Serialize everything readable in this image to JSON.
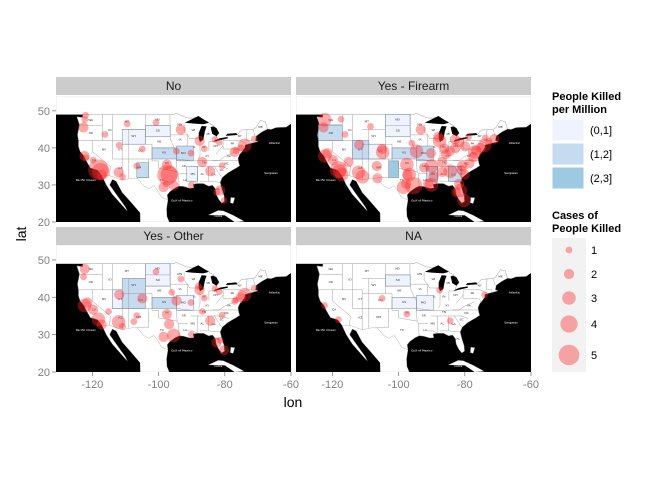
{
  "chart_data": {
    "type": "map",
    "xlabel": "lon",
    "ylabel": "lat",
    "xlim": [
      -131,
      -60
    ],
    "ylim": [
      20,
      54
    ],
    "x_ticks": [
      -120,
      -100,
      -80,
      -60
    ],
    "y_ticks": [
      20,
      30,
      40,
      50
    ],
    "colors": {
      "background": "#000000",
      "land": "#ffffff",
      "strip": "#cccccc",
      "panel_bg": "#e5e5e5",
      "legend_key_bg": "#f2f2f2",
      "point": "#ff2a2a"
    },
    "panels": [
      {
        "name": "No",
        "points": [
          {
            "lon": -118.2,
            "lat": 34.1,
            "size": 5
          },
          {
            "lon": -117.5,
            "lat": 33.6,
            "size": 4
          },
          {
            "lon": -122.4,
            "lat": 37.8,
            "size": 2
          },
          {
            "lon": -121.9,
            "lat": 37.3,
            "size": 1
          },
          {
            "lon": -119.8,
            "lat": 36.7,
            "size": 1
          },
          {
            "lon": -122.3,
            "lat": 47.6,
            "size": 1
          },
          {
            "lon": -122.7,
            "lat": 45.5,
            "size": 2
          },
          {
            "lon": -117.2,
            "lat": 32.7,
            "size": 2
          },
          {
            "lon": -112.1,
            "lat": 33.4,
            "size": 2
          },
          {
            "lon": -110.9,
            "lat": 32.2,
            "size": 1
          },
          {
            "lon": -104.9,
            "lat": 39.7,
            "size": 1
          },
          {
            "lon": -106.6,
            "lat": 35.1,
            "size": 1
          },
          {
            "lon": -111.9,
            "lat": 40.7,
            "size": 1
          },
          {
            "lon": -116.2,
            "lat": 43.6,
            "size": 1
          },
          {
            "lon": -97.5,
            "lat": 35.5,
            "size": 2
          },
          {
            "lon": -96.8,
            "lat": 32.8,
            "size": 4
          },
          {
            "lon": -97.3,
            "lat": 32.7,
            "size": 5
          },
          {
            "lon": -95.4,
            "lat": 29.8,
            "size": 2
          },
          {
            "lon": -98.5,
            "lat": 29.4,
            "size": 2
          },
          {
            "lon": -97.7,
            "lat": 30.3,
            "size": 1
          },
          {
            "lon": -94.6,
            "lat": 39.1,
            "size": 1
          },
          {
            "lon": -93.3,
            "lat": 44.9,
            "size": 2
          },
          {
            "lon": -87.6,
            "lat": 41.9,
            "size": 2
          },
          {
            "lon": -90.2,
            "lat": 38.6,
            "size": 1
          },
          {
            "lon": -86.8,
            "lat": 36.2,
            "size": 2
          },
          {
            "lon": -84.4,
            "lat": 33.7,
            "size": 2
          },
          {
            "lon": -81.7,
            "lat": 41.5,
            "size": 1
          },
          {
            "lon": -83.0,
            "lat": 42.3,
            "size": 1
          },
          {
            "lon": -80.2,
            "lat": 25.8,
            "size": 1
          },
          {
            "lon": -82.5,
            "lat": 28.0,
            "size": 1
          },
          {
            "lon": -81.4,
            "lat": 28.5,
            "size": 2
          },
          {
            "lon": -80.8,
            "lat": 35.2,
            "size": 1
          },
          {
            "lon": -77.0,
            "lat": 38.9,
            "size": 2
          },
          {
            "lon": -75.2,
            "lat": 40.0,
            "size": 1
          },
          {
            "lon": -74.0,
            "lat": 40.7,
            "size": 3
          },
          {
            "lon": -71.1,
            "lat": 42.4,
            "size": 1
          },
          {
            "lon": -76.6,
            "lat": 39.3,
            "size": 1
          },
          {
            "lon": -90.1,
            "lat": 30.0,
            "size": 1
          },
          {
            "lon": -86.2,
            "lat": 39.8,
            "size": 1
          },
          {
            "lon": -122.1,
            "lat": 48.8,
            "size": 1
          },
          {
            "lon": -109.5,
            "lat": 46.5,
            "size": 1
          },
          {
            "lon": -100.8,
            "lat": 46.8,
            "size": 1
          }
        ]
      },
      {
        "name": "Yes - Firearm",
        "points": [
          {
            "lon": -118.2,
            "lat": 34.1,
            "size": 4
          },
          {
            "lon": -117.9,
            "lat": 33.8,
            "size": 3
          },
          {
            "lon": -117.2,
            "lat": 32.8,
            "size": 3
          },
          {
            "lon": -122.3,
            "lat": 37.8,
            "size": 3
          },
          {
            "lon": -121.5,
            "lat": 38.6,
            "size": 2
          },
          {
            "lon": -119.8,
            "lat": 36.7,
            "size": 2
          },
          {
            "lon": -122.3,
            "lat": 47.6,
            "size": 3
          },
          {
            "lon": -122.7,
            "lat": 45.5,
            "size": 2
          },
          {
            "lon": -112.1,
            "lat": 33.4,
            "size": 3
          },
          {
            "lon": -110.9,
            "lat": 32.2,
            "size": 3
          },
          {
            "lon": -115.1,
            "lat": 36.2,
            "size": 2
          },
          {
            "lon": -104.8,
            "lat": 38.8,
            "size": 3
          },
          {
            "lon": -105.0,
            "lat": 39.7,
            "size": 2
          },
          {
            "lon": -106.6,
            "lat": 35.1,
            "size": 2
          },
          {
            "lon": -111.9,
            "lat": 40.8,
            "size": 2
          },
          {
            "lon": -97.5,
            "lat": 35.5,
            "size": 3
          },
          {
            "lon": -96.8,
            "lat": 32.8,
            "size": 3
          },
          {
            "lon": -97.3,
            "lat": 32.7,
            "size": 2
          },
          {
            "lon": -95.4,
            "lat": 29.8,
            "size": 4
          },
          {
            "lon": -98.5,
            "lat": 29.4,
            "size": 3
          },
          {
            "lon": -97.7,
            "lat": 30.3,
            "size": 2
          },
          {
            "lon": -106.4,
            "lat": 31.8,
            "size": 2
          },
          {
            "lon": -94.6,
            "lat": 39.1,
            "size": 3
          },
          {
            "lon": -93.3,
            "lat": 44.9,
            "size": 2
          },
          {
            "lon": -87.6,
            "lat": 41.9,
            "size": 3
          },
          {
            "lon": -90.2,
            "lat": 38.6,
            "size": 2
          },
          {
            "lon": -86.8,
            "lat": 36.2,
            "size": 2
          },
          {
            "lon": -90.0,
            "lat": 35.1,
            "size": 3
          },
          {
            "lon": -84.4,
            "lat": 33.7,
            "size": 3
          },
          {
            "lon": -81.7,
            "lat": 41.5,
            "size": 2
          },
          {
            "lon": -83.0,
            "lat": 42.3,
            "size": 2
          },
          {
            "lon": -80.2,
            "lat": 25.8,
            "size": 3
          },
          {
            "lon": -82.5,
            "lat": 28.0,
            "size": 2
          },
          {
            "lon": -81.4,
            "lat": 28.5,
            "size": 3
          },
          {
            "lon": -81.7,
            "lat": 30.3,
            "size": 2
          },
          {
            "lon": -80.8,
            "lat": 35.2,
            "size": 2
          },
          {
            "lon": -78.6,
            "lat": 35.8,
            "size": 2
          },
          {
            "lon": -77.0,
            "lat": 38.9,
            "size": 3
          },
          {
            "lon": -75.2,
            "lat": 40.0,
            "size": 2
          },
          {
            "lon": -74.0,
            "lat": 40.7,
            "size": 3
          },
          {
            "lon": -71.1,
            "lat": 42.4,
            "size": 2
          },
          {
            "lon": -76.6,
            "lat": 39.3,
            "size": 2
          },
          {
            "lon": -90.1,
            "lat": 30.0,
            "size": 3
          },
          {
            "lon": -91.1,
            "lat": 30.4,
            "size": 2
          },
          {
            "lon": -86.2,
            "lat": 39.8,
            "size": 2
          },
          {
            "lon": -88.0,
            "lat": 43.0,
            "size": 2
          },
          {
            "lon": -85.7,
            "lat": 38.3,
            "size": 2
          },
          {
            "lon": -86.8,
            "lat": 33.5,
            "size": 2
          },
          {
            "lon": -89.4,
            "lat": 32.3,
            "size": 2
          },
          {
            "lon": -92.3,
            "lat": 34.7,
            "size": 2
          },
          {
            "lon": -96.0,
            "lat": 41.3,
            "size": 1
          },
          {
            "lon": -84.5,
            "lat": 39.1,
            "size": 2
          },
          {
            "lon": -82.9,
            "lat": 40.0,
            "size": 2
          },
          {
            "lon": -79.9,
            "lat": 40.4,
            "size": 2
          },
          {
            "lon": -80.0,
            "lat": 32.8,
            "size": 2
          },
          {
            "lon": -81.0,
            "lat": 34.0,
            "size": 2
          },
          {
            "lon": -77.4,
            "lat": 37.5,
            "size": 2
          },
          {
            "lon": -72.7,
            "lat": 41.8,
            "size": 1
          },
          {
            "lon": -73.8,
            "lat": 42.7,
            "size": 1
          },
          {
            "lon": -78.9,
            "lat": 42.9,
            "size": 1
          },
          {
            "lon": -117.4,
            "lat": 47.7,
            "size": 1
          },
          {
            "lon": -116.2,
            "lat": 43.6,
            "size": 1
          },
          {
            "lon": -108.5,
            "lat": 45.8,
            "size": 1
          }
        ]
      },
      {
        "name": "Yes - Other",
        "points": [
          {
            "lon": -118.2,
            "lat": 34.1,
            "size": 3
          },
          {
            "lon": -117.2,
            "lat": 32.7,
            "size": 2
          },
          {
            "lon": -122.4,
            "lat": 37.8,
            "size": 3
          },
          {
            "lon": -121.5,
            "lat": 38.6,
            "size": 2
          },
          {
            "lon": -119.8,
            "lat": 36.7,
            "size": 2
          },
          {
            "lon": -122.3,
            "lat": 47.6,
            "size": 2
          },
          {
            "lon": -122.7,
            "lat": 45.5,
            "size": 1
          },
          {
            "lon": -112.1,
            "lat": 33.4,
            "size": 3
          },
          {
            "lon": -110.9,
            "lat": 32.2,
            "size": 1
          },
          {
            "lon": -115.1,
            "lat": 36.2,
            "size": 1
          },
          {
            "lon": -104.9,
            "lat": 39.7,
            "size": 2
          },
          {
            "lon": -106.6,
            "lat": 35.1,
            "size": 1
          },
          {
            "lon": -111.9,
            "lat": 40.7,
            "size": 2
          },
          {
            "lon": -97.5,
            "lat": 35.5,
            "size": 2
          },
          {
            "lon": -96.8,
            "lat": 32.8,
            "size": 2
          },
          {
            "lon": -95.4,
            "lat": 29.8,
            "size": 3
          },
          {
            "lon": -98.5,
            "lat": 29.4,
            "size": 2
          },
          {
            "lon": -94.6,
            "lat": 39.1,
            "size": 2
          },
          {
            "lon": -93.3,
            "lat": 44.9,
            "size": 1
          },
          {
            "lon": -87.6,
            "lat": 41.9,
            "size": 2
          },
          {
            "lon": -90.2,
            "lat": 38.6,
            "size": 1
          },
          {
            "lon": -86.8,
            "lat": 36.2,
            "size": 1
          },
          {
            "lon": -84.4,
            "lat": 33.7,
            "size": 2
          },
          {
            "lon": -81.7,
            "lat": 41.5,
            "size": 1
          },
          {
            "lon": -83.0,
            "lat": 42.3,
            "size": 1
          },
          {
            "lon": -80.2,
            "lat": 25.8,
            "size": 2
          },
          {
            "lon": -81.4,
            "lat": 28.5,
            "size": 1
          },
          {
            "lon": -82.5,
            "lat": 27.9,
            "size": 2
          },
          {
            "lon": -80.8,
            "lat": 35.2,
            "size": 1
          },
          {
            "lon": -77.0,
            "lat": 38.9,
            "size": 1
          },
          {
            "lon": -75.2,
            "lat": 40.0,
            "size": 2
          },
          {
            "lon": -74.0,
            "lat": 40.7,
            "size": 3
          },
          {
            "lon": -71.1,
            "lat": 42.4,
            "size": 1
          },
          {
            "lon": -76.6,
            "lat": 39.3,
            "size": 1
          },
          {
            "lon": -90.1,
            "lat": 30.0,
            "size": 1
          },
          {
            "lon": -86.2,
            "lat": 39.8,
            "size": 1
          },
          {
            "lon": -96.0,
            "lat": 41.3,
            "size": 1
          },
          {
            "lon": -100.8,
            "lat": 46.8,
            "size": 1
          },
          {
            "lon": -88.0,
            "lat": 43.0,
            "size": 1
          },
          {
            "lon": -107.5,
            "lat": 33.5,
            "size": 1
          }
        ]
      },
      {
        "name": "NA",
        "points": [
          {
            "lon": -118.2,
            "lat": 34.0,
            "size": 1
          },
          {
            "lon": -122.4,
            "lat": 37.8,
            "size": 1
          },
          {
            "lon": -105.0,
            "lat": 39.7,
            "size": 1
          },
          {
            "lon": -97.5,
            "lat": 35.5,
            "size": 1
          },
          {
            "lon": -87.6,
            "lat": 41.9,
            "size": 1
          },
          {
            "lon": -84.4,
            "lat": 33.7,
            "size": 1
          },
          {
            "lon": -74.0,
            "lat": 40.7,
            "size": 1
          }
        ]
      }
    ],
    "fill_legend": {
      "title": [
        "People Killed",
        "per Million"
      ],
      "entries": [
        {
          "label": "(0,1]",
          "color": "#eff3ff"
        },
        {
          "label": "(1,2]",
          "color": "#c6dbef"
        },
        {
          "label": "(2,3]",
          "color": "#9ecae1"
        }
      ]
    },
    "size_legend": {
      "title": [
        "Cases of",
        "People Killed"
      ],
      "entries": [
        {
          "label": "1",
          "size": 1
        },
        {
          "label": "2",
          "size": 2
        },
        {
          "label": "3",
          "size": 3
        },
        {
          "label": "4",
          "size": 4
        },
        {
          "label": "5",
          "size": 5
        }
      ]
    }
  }
}
